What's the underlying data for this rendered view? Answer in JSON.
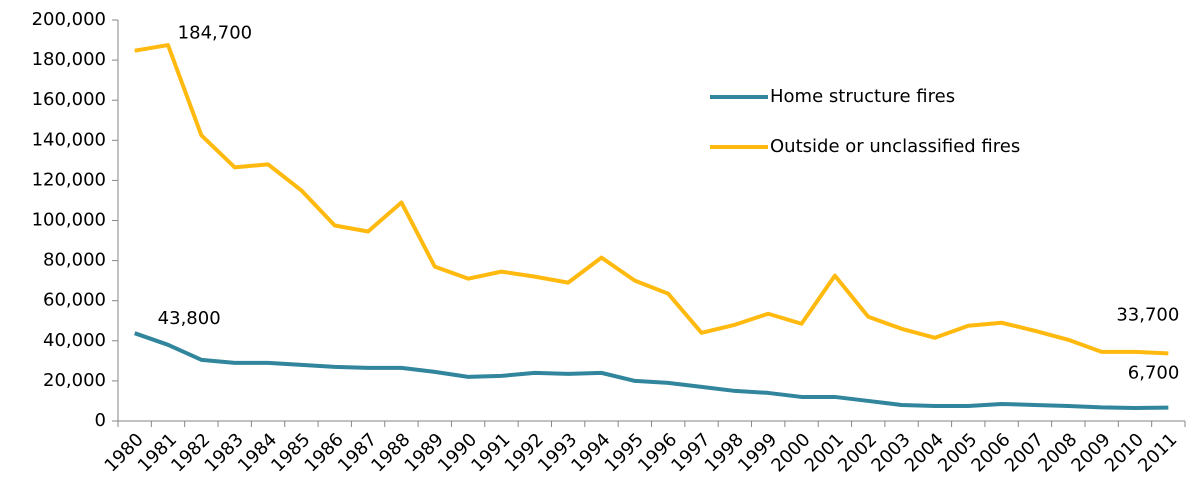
{
  "chart_data": {
    "type": "line",
    "categories": [
      "1980",
      "1981",
      "1982",
      "1983",
      "1984",
      "1985",
      "1986",
      "1987",
      "1988",
      "1989",
      "1990",
      "1991",
      "1992",
      "1993",
      "1994",
      "1995",
      "1996",
      "1997",
      "1998",
      "1999",
      "2000",
      "2001",
      "2002",
      "2003",
      "2004",
      "2005",
      "2006",
      "2007",
      "2008",
      "2009",
      "2010",
      "2011"
    ],
    "series": [
      {
        "name": "Home structure fires",
        "color": "#31859c",
        "values": [
          43800,
          38000,
          30500,
          29000,
          29000,
          28000,
          27000,
          26500,
          26500,
          24500,
          22000,
          22500,
          24000,
          23500,
          24000,
          20000,
          19000,
          17000,
          15000,
          14000,
          12000,
          12000,
          10000,
          8000,
          7500,
          7500,
          8500,
          8000,
          7500,
          6800,
          6500,
          6700
        ],
        "value_labels": [
          "43,800",
          null,
          null,
          null,
          null,
          null,
          null,
          null,
          null,
          null,
          null,
          null,
          null,
          null,
          null,
          null,
          null,
          null,
          null,
          null,
          null,
          null,
          null,
          null,
          null,
          null,
          null,
          null,
          null,
          null,
          null,
          "6,700"
        ]
      },
      {
        "name": "Outside or unclassified fires",
        "color": "#ffb90f",
        "values": [
          184700,
          187500,
          142500,
          126500,
          128000,
          115000,
          97500,
          94500,
          109000,
          77000,
          71000,
          74500,
          72000,
          69000,
          81500,
          70000,
          63500,
          44000,
          48000,
          53500,
          48500,
          72500,
          52000,
          46000,
          41500,
          47500,
          49000,
          45000,
          40500,
          34500,
          34500,
          33700
        ],
        "value_labels": [
          "184,700",
          null,
          null,
          null,
          null,
          null,
          null,
          null,
          null,
          null,
          null,
          null,
          null,
          null,
          null,
          null,
          null,
          null,
          null,
          null,
          null,
          null,
          null,
          null,
          null,
          null,
          null,
          null,
          null,
          null,
          null,
          "33,700"
        ]
      }
    ],
    "ylim": [
      0,
      200000
    ],
    "yticks": [
      0,
      {
        "value": 20000,
        "label": "20,000"
      },
      {
        "value": 40000,
        "label": "40,000"
      },
      {
        "value": 60000,
        "label": "60,000"
      },
      {
        "value": 80000,
        "label": "80,000"
      },
      {
        "value": 100000,
        "label": "100,000"
      },
      {
        "value": 120000,
        "label": "120,000"
      },
      {
        "value": 140000,
        "label": "140,000"
      },
      {
        "value": 160000,
        "label": "160,000"
      },
      {
        "value": 180000,
        "label": "180,000"
      },
      {
        "value": 200000,
        "label": "200,000"
      }
    ],
    "grid": false,
    "legend": "upper right"
  }
}
